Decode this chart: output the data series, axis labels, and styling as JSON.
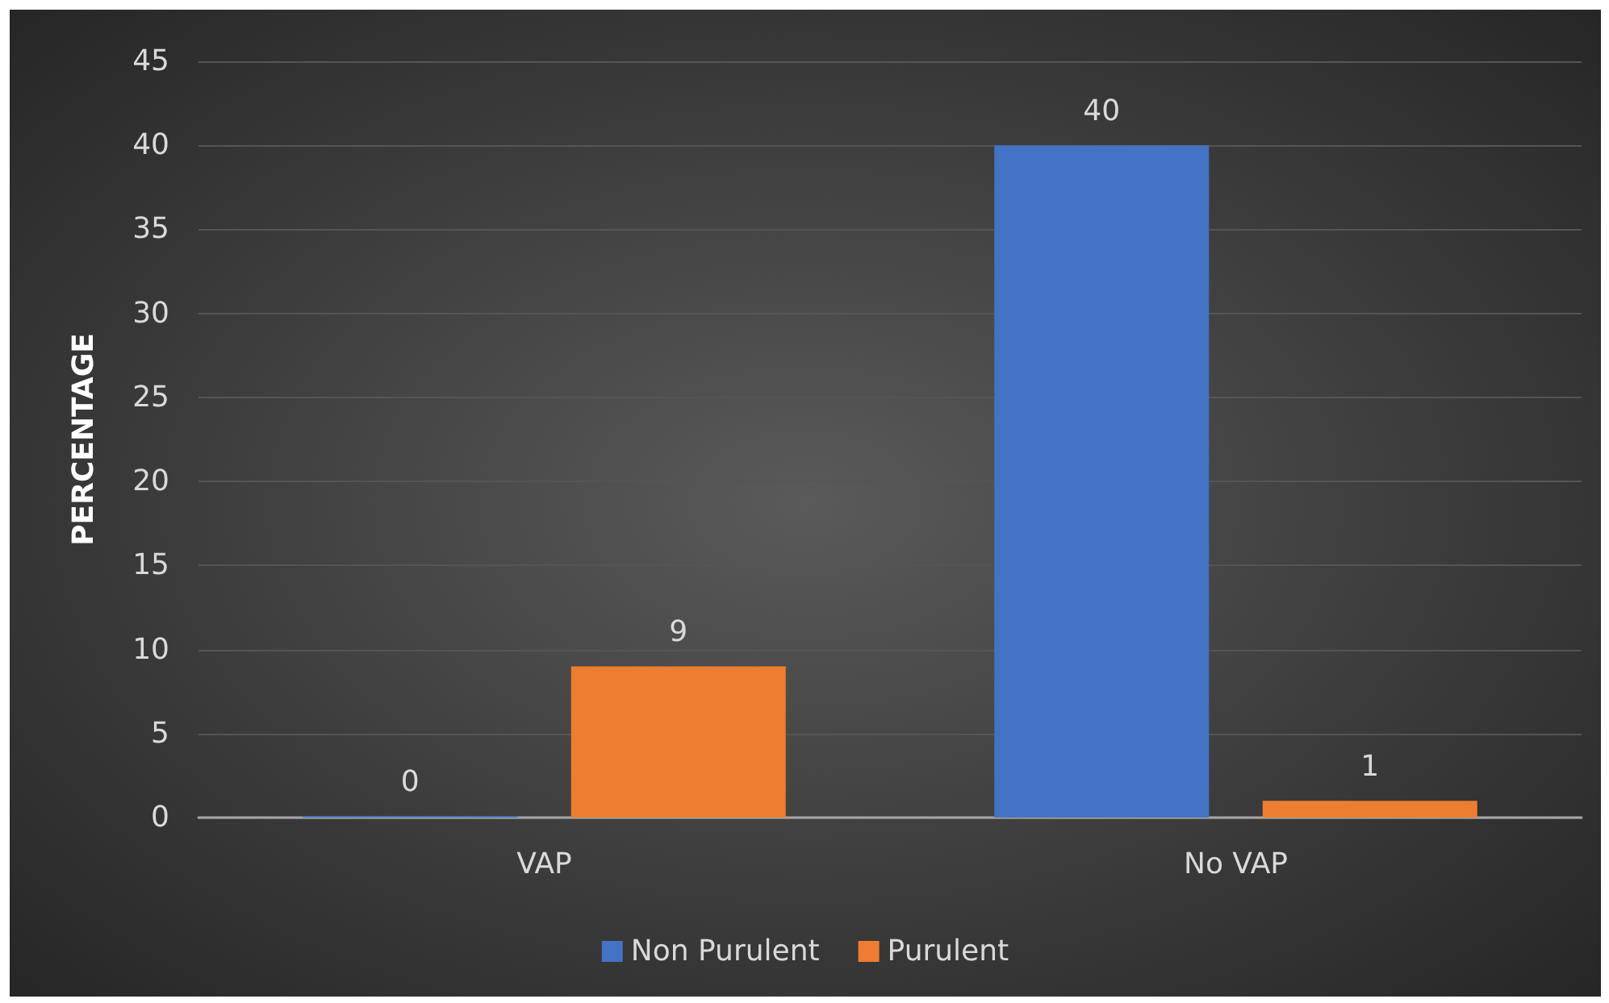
{
  "chart_data": {
    "type": "bar",
    "ylabel": "PERCENTAGE",
    "categories": [
      "VAP",
      "No VAP"
    ],
    "series": [
      {
        "name": "Non Purulent",
        "color": "#4472c4",
        "values": [
          0,
          40
        ]
      },
      {
        "name": "Purulent",
        "color": "#ed7d31",
        "values": [
          9,
          1
        ]
      }
    ],
    "ylim": [
      0,
      45
    ],
    "yticks": [
      0,
      5,
      10,
      15,
      20,
      25,
      30,
      35,
      40,
      45
    ],
    "grid": "y",
    "legend": "bottom",
    "data_labels": true
  }
}
